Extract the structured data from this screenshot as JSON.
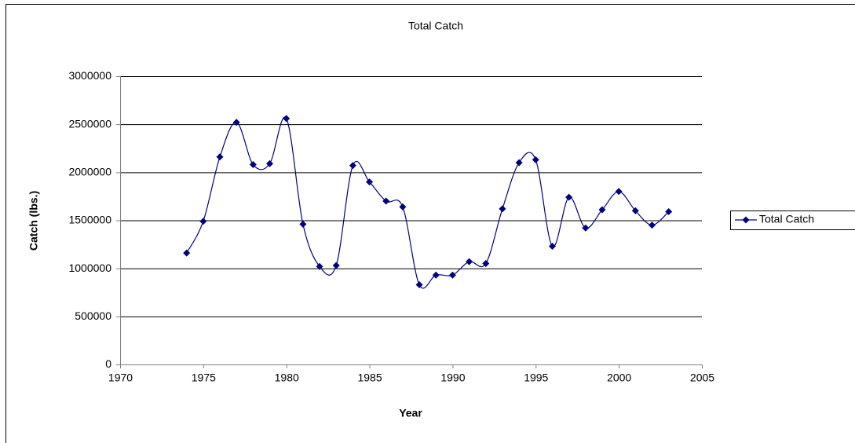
{
  "chart_data": {
    "type": "line",
    "title": "Total Catch",
    "x_label": "Year",
    "y_label": "Catch (lbs.)",
    "x": [
      1974,
      1975,
      1976,
      1977,
      1978,
      1979,
      1980,
      1981,
      1982,
      1983,
      1984,
      1985,
      1986,
      1987,
      1988,
      1989,
      1990,
      1991,
      1992,
      1993,
      1994,
      1995,
      1996,
      1997,
      1998,
      1999,
      2000,
      2001,
      2002,
      2003
    ],
    "series": [
      {
        "name": "Total Catch",
        "color": "#000080",
        "values": [
          1160000,
          1490000,
          2160000,
          2520000,
          2080000,
          2090000,
          2560000,
          1460000,
          1020000,
          1030000,
          2070000,
          1900000,
          1700000,
          1640000,
          830000,
          930000,
          930000,
          1070000,
          1050000,
          1620000,
          2100000,
          2130000,
          1230000,
          1740000,
          1420000,
          1610000,
          1800000,
          1600000,
          1450000,
          1590000
        ]
      }
    ],
    "xlim": [
      1970,
      2005
    ],
    "xticks": [
      1970,
      1975,
      1980,
      1985,
      1990,
      1995,
      2000,
      2005
    ],
    "ylim": [
      0,
      3000000
    ],
    "yticks": [
      0,
      500000,
      1000000,
      1500000,
      2000000,
      2500000,
      3000000
    ],
    "grid": true,
    "smooth": true,
    "legend": "right"
  }
}
